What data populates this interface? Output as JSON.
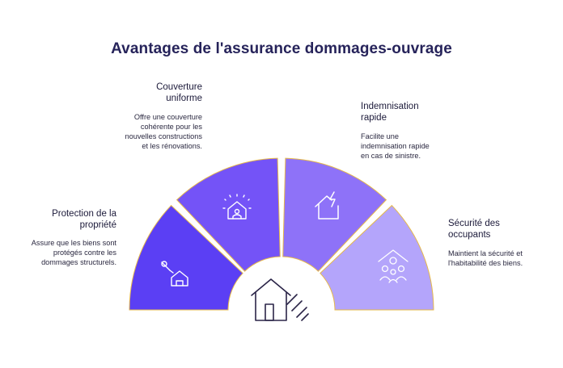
{
  "title": "Avantages de l'assurance dommages-ouvrage",
  "segments": [
    {
      "label": "Protection de la propriété",
      "description": "Assure que les biens sont protégés contre les dommages structurels.",
      "icon": "wrench-house-icon",
      "color": "#5b3ff4"
    },
    {
      "label": "Couverture uniforme",
      "description": "Offre une couverture cohérente pour les nouvelles constructions et les rénovations.",
      "icon": "sparkle-house-icon",
      "color": "#7453f7"
    },
    {
      "label": "Indemnisation rapide",
      "description": "Facilite une indemnisation rapide en cas de sinistre.",
      "icon": "lightning-house-icon",
      "color": "#8e72f8"
    },
    {
      "label": "Sécurité des occupants",
      "description": "Maintient la sécurité et l'habitabilité des biens.",
      "icon": "family-house-icon",
      "color": "#b4a5fb"
    }
  ],
  "center_icon": "house-icon",
  "accent_border": "#e6b84a"
}
